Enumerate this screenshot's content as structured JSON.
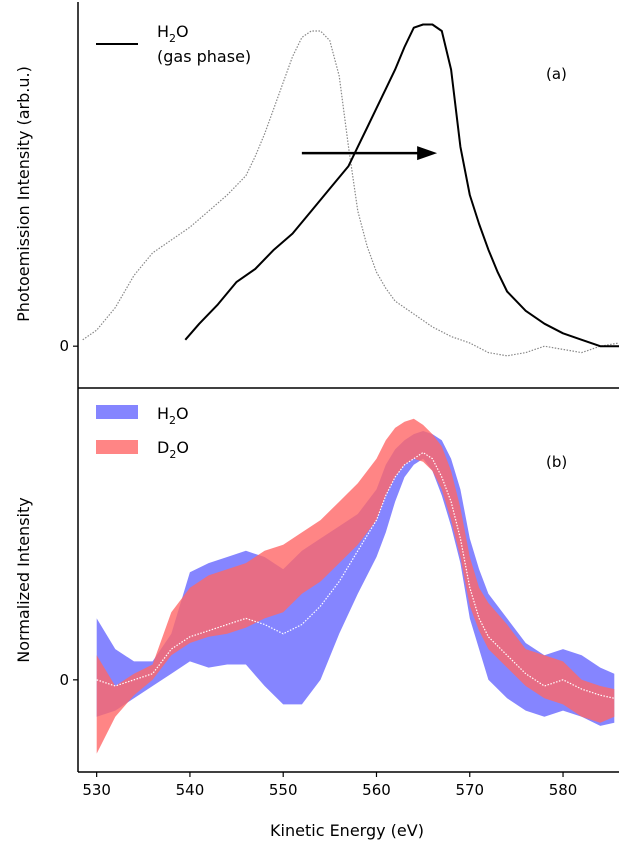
{
  "chart_data": [
    {
      "panel": "(a)",
      "type": "line",
      "ylabel": "Photoemission Intensity (arb.u.)",
      "xlim": [
        528,
        586
      ],
      "ylim": [
        -0.13,
        1.07
      ],
      "yticks": [
        {
          "value": 0,
          "label": "0"
        }
      ],
      "legend": {
        "position": "top-left",
        "entries": [
          {
            "label_main": "H",
            "label_sub": "2",
            "label_tail": "O",
            "label_line2": "(gas phase)",
            "style": "solid",
            "color": "#000000"
          }
        ]
      },
      "annotation": {
        "type": "arrow",
        "from": [
          552,
          0.6
        ],
        "to": [
          566.5,
          0.6
        ],
        "meaning": "shift to higher kinetic energy"
      },
      "series": [
        {
          "style": "dotted",
          "color": "#888888",
          "x": [
            528.5,
            530,
            532,
            534,
            536,
            538,
            540,
            542,
            544,
            546,
            547,
            548,
            549,
            550,
            551,
            552,
            553,
            554,
            555,
            556,
            557,
            558,
            559,
            560,
            561,
            562,
            564,
            566,
            568,
            570,
            572,
            574,
            576,
            578,
            580,
            582,
            584,
            586
          ],
          "y": [
            0.02,
            0.05,
            0.12,
            0.22,
            0.29,
            0.33,
            0.37,
            0.42,
            0.47,
            0.53,
            0.59,
            0.66,
            0.74,
            0.82,
            0.9,
            0.96,
            0.98,
            0.98,
            0.95,
            0.84,
            0.62,
            0.42,
            0.31,
            0.23,
            0.18,
            0.14,
            0.1,
            0.06,
            0.03,
            0.01,
            -0.02,
            -0.03,
            -0.02,
            0.0,
            -0.01,
            -0.02,
            0.0,
            0.01
          ]
        },
        {
          "style": "solid",
          "color": "#000000",
          "x": [
            539.5,
            541,
            543,
            545,
            547,
            549,
            551,
            553,
            555,
            557,
            558,
            559,
            560,
            561,
            562,
            563,
            564,
            565,
            566,
            567,
            568,
            569,
            570,
            571,
            572,
            573,
            574,
            576,
            578,
            580,
            582,
            584,
            586
          ],
          "y": [
            0.02,
            0.07,
            0.13,
            0.2,
            0.24,
            0.3,
            0.35,
            0.42,
            0.49,
            0.56,
            0.62,
            0.68,
            0.74,
            0.8,
            0.86,
            0.93,
            0.99,
            1.0,
            1.0,
            0.98,
            0.86,
            0.62,
            0.47,
            0.38,
            0.3,
            0.23,
            0.17,
            0.11,
            0.07,
            0.04,
            0.02,
            0.0,
            0.0
          ]
        }
      ]
    },
    {
      "panel": "(b)",
      "type": "area",
      "ylabel": "Normalized Intensity",
      "xlabel": "Kinetic Energy (eV)",
      "xlim": [
        528,
        586
      ],
      "ylim": [
        -0.3,
        0.95
      ],
      "xticks": [
        530,
        540,
        550,
        560,
        570,
        580
      ],
      "yticks": [
        {
          "value": 0,
          "label": "0"
        }
      ],
      "legend": {
        "position": "top-left",
        "entries": [
          {
            "label_main": "H",
            "label_sub": "2",
            "label_tail": "O",
            "color": "#6666ff"
          },
          {
            "label_main": "D",
            "label_sub": "2",
            "label_tail": "O",
            "color": "#ff6666"
          }
        ]
      },
      "x": [
        530,
        532,
        534,
        536,
        538,
        540,
        542,
        544,
        546,
        548,
        550,
        552,
        554,
        556,
        558,
        560,
        561,
        562,
        563,
        564,
        565,
        566,
        567,
        568,
        569,
        570,
        571,
        572,
        574,
        576,
        578,
        580,
        582,
        584,
        585.5
      ],
      "series": [
        {
          "name_main": "H",
          "name_sub": "2",
          "name_tail": "O",
          "color": "#6666ff",
          "opacity": 0.8,
          "upper": [
            0.2,
            0.1,
            0.06,
            0.06,
            0.15,
            0.35,
            0.38,
            0.4,
            0.42,
            0.4,
            0.36,
            0.42,
            0.46,
            0.5,
            0.54,
            0.62,
            0.7,
            0.75,
            0.78,
            0.8,
            0.81,
            0.8,
            0.78,
            0.72,
            0.62,
            0.46,
            0.36,
            0.28,
            0.2,
            0.12,
            0.08,
            0.1,
            0.08,
            0.04,
            0.02
          ],
          "lower": [
            -0.12,
            -0.1,
            -0.06,
            -0.02,
            0.02,
            0.06,
            0.04,
            0.05,
            0.05,
            -0.02,
            -0.08,
            -0.08,
            0.0,
            0.15,
            0.28,
            0.4,
            0.48,
            0.58,
            0.66,
            0.7,
            0.72,
            0.68,
            0.6,
            0.5,
            0.38,
            0.2,
            0.1,
            0.0,
            -0.06,
            -0.1,
            -0.12,
            -0.1,
            -0.12,
            -0.15,
            -0.14
          ]
        },
        {
          "name_main": "D",
          "name_sub": "2",
          "name_tail": "O",
          "color": "#ff6666",
          "opacity": 0.8,
          "upper": [
            0.08,
            -0.02,
            0.02,
            0.05,
            0.22,
            0.3,
            0.34,
            0.36,
            0.38,
            0.42,
            0.44,
            0.48,
            0.52,
            0.58,
            0.64,
            0.72,
            0.78,
            0.82,
            0.84,
            0.85,
            0.83,
            0.8,
            0.76,
            0.68,
            0.56,
            0.4,
            0.3,
            0.25,
            0.18,
            0.1,
            0.08,
            0.06,
            0.0,
            -0.02,
            -0.03
          ],
          "lower": [
            -0.24,
            -0.12,
            -0.05,
            0.0,
            0.08,
            0.12,
            0.14,
            0.15,
            0.17,
            0.2,
            0.22,
            0.28,
            0.32,
            0.38,
            0.44,
            0.52,
            0.6,
            0.66,
            0.7,
            0.72,
            0.71,
            0.68,
            0.62,
            0.52,
            0.4,
            0.24,
            0.16,
            0.1,
            0.04,
            -0.02,
            -0.06,
            -0.08,
            -0.12,
            -0.14,
            -0.12
          ]
        },
        {
          "style": "dotted",
          "color": "#ffffff",
          "values": [
            0.0,
            -0.02,
            0.0,
            0.02,
            0.1,
            0.14,
            0.16,
            0.18,
            0.2,
            0.18,
            0.15,
            0.18,
            0.24,
            0.32,
            0.42,
            0.52,
            0.6,
            0.66,
            0.7,
            0.72,
            0.74,
            0.72,
            0.66,
            0.58,
            0.46,
            0.3,
            0.2,
            0.14,
            0.08,
            0.02,
            -0.02,
            0.0,
            -0.03,
            -0.05,
            -0.06
          ]
        }
      ]
    }
  ]
}
